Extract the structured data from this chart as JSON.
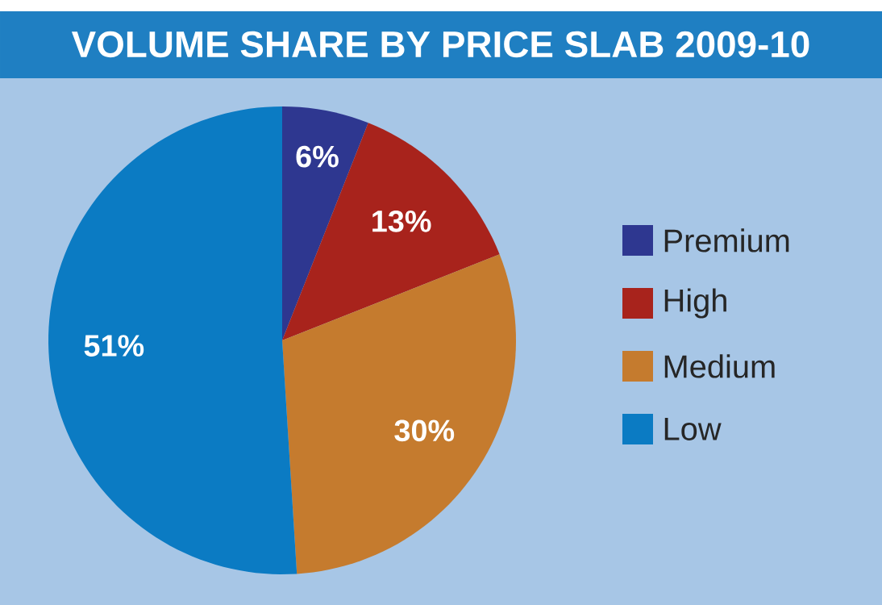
{
  "chart_data": {
    "type": "pie",
    "title": "VOLUME SHARE BY PRICE SLAB 2009-10",
    "categories": [
      "Premium",
      "High",
      "Medium",
      "Low"
    ],
    "values": [
      6,
      13,
      30,
      51
    ],
    "colors": [
      "#2e3790",
      "#a8231c",
      "#c57b2e",
      "#0b7bc3"
    ],
    "value_labels": [
      "6%",
      "13%",
      "30%",
      "51%"
    ],
    "legend": "right"
  }
}
